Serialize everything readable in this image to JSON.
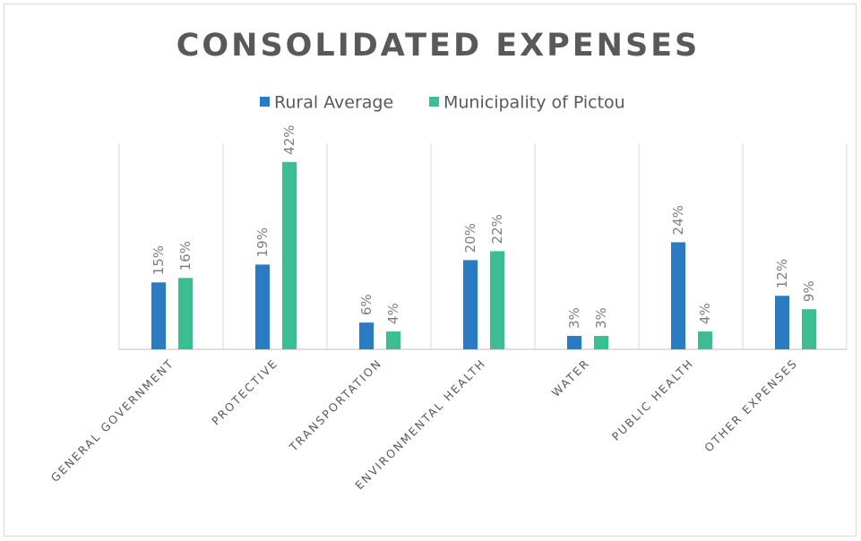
{
  "chart_data": {
    "type": "bar",
    "title": "CONSOLIDATED EXPENSES",
    "categories": [
      "GENERAL GOVERNMENT",
      "PROTECTIVE",
      "TRANSPORTATION",
      "ENVIRONMENTAL HEALTH",
      "WATER",
      "PUBLIC HEALTH",
      "OTHER EXPENSES"
    ],
    "series": [
      {
        "name": "Rural Average",
        "color": "#2b7bc3",
        "values": [
          15,
          19,
          6,
          20,
          3,
          24,
          12
        ],
        "value_labels": [
          "15%",
          "19%",
          "6%",
          "20%",
          "3%",
          "24%",
          "12%"
        ]
      },
      {
        "name": "Municipality of Pictou",
        "color": "#3dbd94",
        "values": [
          16,
          42,
          4,
          22,
          3,
          4,
          9
        ],
        "value_labels": [
          "16%",
          "42%",
          "4%",
          "22%",
          "3%",
          "4%",
          "9%"
        ]
      }
    ]
  }
}
